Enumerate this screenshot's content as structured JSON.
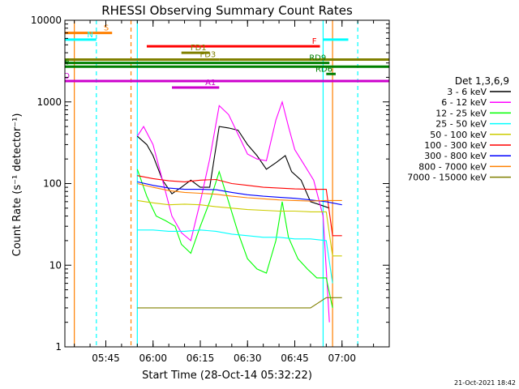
{
  "chart_data": {
    "type": "line",
    "title": "RHESSI Observing Summary Count Rates",
    "xlabel": "Start Time (28-Oct-14 05:32:22)",
    "ylabel": "Count Rate (s⁻¹ detector⁻¹)",
    "y_scale": "log",
    "ylim": [
      1,
      10000
    ],
    "xlim": [
      "05:32",
      "07:15"
    ],
    "x_ticks": [
      "05:45",
      "06:00",
      "06:15",
      "06:30",
      "06:45",
      "07:00"
    ],
    "y_ticks": [
      "1",
      "10",
      "100",
      "1000",
      "10000"
    ],
    "legend_title": "Det 1,3,6,9",
    "legend_position": "right",
    "series": [
      {
        "name": "3 - 6 keV",
        "color": "#000000",
        "points": [
          [
            "05:55",
            380
          ],
          [
            "05:58",
            300
          ],
          [
            "06:00",
            220
          ],
          [
            "06:03",
            110
          ],
          [
            "06:06",
            75
          ],
          [
            "06:09",
            90
          ],
          [
            "06:12",
            110
          ],
          [
            "06:15",
            90
          ],
          [
            "06:18",
            90
          ],
          [
            "06:21",
            500
          ],
          [
            "06:24",
            480
          ],
          [
            "06:27",
            450
          ],
          [
            "06:30",
            300
          ],
          [
            "06:33",
            220
          ],
          [
            "06:36",
            150
          ],
          [
            "06:39",
            180
          ],
          [
            "06:42",
            220
          ],
          [
            "06:44",
            140
          ],
          [
            "06:47",
            110
          ],
          [
            "06:50",
            60
          ],
          [
            "06:53",
            55
          ],
          [
            "06:56",
            50
          ]
        ]
      },
      {
        "name": "6 - 12 keV",
        "color": "#ff00ff",
        "points": [
          [
            "05:55",
            380
          ],
          [
            "05:57",
            500
          ],
          [
            "06:00",
            300
          ],
          [
            "06:03",
            110
          ],
          [
            "06:06",
            40
          ],
          [
            "06:09",
            25
          ],
          [
            "06:12",
            20
          ],
          [
            "06:15",
            60
          ],
          [
            "06:18",
            200
          ],
          [
            "06:21",
            900
          ],
          [
            "06:24",
            700
          ],
          [
            "06:27",
            400
          ],
          [
            "06:30",
            230
          ],
          [
            "06:33",
            200
          ],
          [
            "06:36",
            190
          ],
          [
            "06:39",
            600
          ],
          [
            "06:41",
            1000
          ],
          [
            "06:43",
            500
          ],
          [
            "06:45",
            260
          ],
          [
            "06:48",
            170
          ],
          [
            "06:51",
            110
          ],
          [
            "06:54",
            40
          ],
          [
            "06:56",
            2
          ]
        ]
      },
      {
        "name": "12 - 25 keV",
        "color": "#00ff00",
        "points": [
          [
            "05:55",
            150
          ],
          [
            "05:58",
            70
          ],
          [
            "06:01",
            40
          ],
          [
            "06:04",
            35
          ],
          [
            "06:07",
            30
          ],
          [
            "06:09",
            18
          ],
          [
            "06:12",
            14
          ],
          [
            "06:15",
            30
          ],
          [
            "06:18",
            60
          ],
          [
            "06:21",
            140
          ],
          [
            "06:24",
            60
          ],
          [
            "06:27",
            25
          ],
          [
            "06:30",
            12
          ],
          [
            "06:33",
            9
          ],
          [
            "06:36",
            8
          ],
          [
            "06:39",
            20
          ],
          [
            "06:41",
            60
          ],
          [
            "06:43",
            22
          ],
          [
            "06:46",
            12
          ],
          [
            "06:49",
            9
          ],
          [
            "06:52",
            7
          ],
          [
            "06:55",
            7
          ],
          [
            "06:57",
            3
          ]
        ]
      },
      {
        "name": "25 - 50 keV",
        "color": "#00ffff",
        "points": [
          [
            "05:55",
            27
          ],
          [
            "06:00",
            27
          ],
          [
            "06:05",
            26
          ],
          [
            "06:10",
            26
          ],
          [
            "06:15",
            27
          ],
          [
            "06:20",
            26
          ],
          [
            "06:25",
            24
          ],
          [
            "06:30",
            23
          ],
          [
            "06:35",
            22
          ],
          [
            "06:40",
            22
          ],
          [
            "06:45",
            21
          ],
          [
            "06:50",
            21
          ],
          [
            "06:55",
            20
          ],
          [
            "06:57",
            6
          ]
        ]
      },
      {
        "name": "50 - 100 keV",
        "color": "#cccc00",
        "points": [
          [
            "05:55",
            62
          ],
          [
            "06:00",
            58
          ],
          [
            "06:05",
            55
          ],
          [
            "06:10",
            56
          ],
          [
            "06:15",
            55
          ],
          [
            "06:20",
            52
          ],
          [
            "06:25",
            50
          ],
          [
            "06:30",
            48
          ],
          [
            "06:35",
            47
          ],
          [
            "06:40",
            46
          ],
          [
            "06:45",
            46
          ],
          [
            "06:50",
            45
          ],
          [
            "06:55",
            45
          ],
          [
            "06:57",
            13
          ],
          [
            "07:00",
            13
          ]
        ]
      },
      {
        "name": "100 - 300 keV",
        "color": "#ff0000",
        "points": [
          [
            "05:55",
            125
          ],
          [
            "06:00",
            115
          ],
          [
            "06:05",
            108
          ],
          [
            "06:10",
            105
          ],
          [
            "06:15",
            110
          ],
          [
            "06:20",
            112
          ],
          [
            "06:25",
            100
          ],
          [
            "06:30",
            95
          ],
          [
            "06:35",
            90
          ],
          [
            "06:40",
            88
          ],
          [
            "06:45",
            86
          ],
          [
            "06:50",
            85
          ],
          [
            "06:55",
            85
          ],
          [
            "06:57",
            23
          ],
          [
            "07:00",
            23
          ]
        ]
      },
      {
        "name": "300 - 800 keV",
        "color": "#0000ff",
        "points": [
          [
            "05:55",
            105
          ],
          [
            "06:00",
            95
          ],
          [
            "06:05",
            88
          ],
          [
            "06:10",
            85
          ],
          [
            "06:15",
            85
          ],
          [
            "06:20",
            84
          ],
          [
            "06:25",
            78
          ],
          [
            "06:30",
            73
          ],
          [
            "06:35",
            70
          ],
          [
            "06:40",
            68
          ],
          [
            "06:45",
            66
          ],
          [
            "06:50",
            63
          ],
          [
            "06:55",
            60
          ],
          [
            "07:00",
            55
          ]
        ]
      },
      {
        "name": "800 - 7000 keV",
        "color": "#ff8000",
        "points": [
          [
            "05:55",
            100
          ],
          [
            "06:00",
            90
          ],
          [
            "06:05",
            82
          ],
          [
            "06:10",
            78
          ],
          [
            "06:15",
            76
          ],
          [
            "06:20",
            74
          ],
          [
            "06:25",
            70
          ],
          [
            "06:30",
            67
          ],
          [
            "06:35",
            65
          ],
          [
            "06:40",
            63
          ],
          [
            "06:45",
            62
          ],
          [
            "06:50",
            61
          ],
          [
            "06:55",
            62
          ],
          [
            "07:00",
            62
          ]
        ]
      },
      {
        "name": "7000 - 15000 keV",
        "color": "#808000",
        "points": [
          [
            "05:55",
            3
          ],
          [
            "06:00",
            3
          ],
          [
            "06:05",
            3
          ],
          [
            "06:10",
            3
          ],
          [
            "06:15",
            3
          ],
          [
            "06:20",
            3
          ],
          [
            "06:25",
            3
          ],
          [
            "06:30",
            3
          ],
          [
            "06:35",
            3
          ],
          [
            "06:40",
            3
          ],
          [
            "06:45",
            3
          ],
          [
            "06:50",
            3
          ],
          [
            "06:55",
            4
          ],
          [
            "07:00",
            4
          ]
        ]
      }
    ],
    "flag_bars": [
      {
        "label": "S",
        "color": "#ff8000",
        "y": 7000,
        "segments": [
          [
            "05:32",
            "05:47"
          ]
        ]
      },
      {
        "label": "N",
        "color": "#00ffff",
        "y": 5800,
        "segments": [
          [
            "05:32",
            "05:42"
          ],
          [
            "06:54",
            "07:02"
          ]
        ]
      },
      {
        "label": "F",
        "color": "#ff0000",
        "y": 4800,
        "segments": [
          [
            "05:58",
            "06:53"
          ]
        ]
      },
      {
        "label": "FD1",
        "color": "#808000",
        "y": 4000,
        "segments": [
          [
            "06:09",
            "06:18"
          ]
        ]
      },
      {
        "label": "FD3",
        "color": "#808000",
        "y": 3300,
        "segments": [
          [
            "05:32",
            "06:21"
          ],
          [
            "06:21",
            "07:15"
          ]
        ]
      },
      {
        "label": "RD9",
        "color": "#008000",
        "y": 3000,
        "segments": [
          [
            "05:32",
            "06:56"
          ]
        ]
      },
      {
        "label": "RD6",
        "color": "#008000",
        "y": 2700,
        "segments": [
          [
            "05:32",
            "07:15"
          ]
        ]
      },
      {
        "label": "RD6",
        "color": "#008000",
        "y": 2200,
        "segments": [
          [
            "06:55",
            "06:58"
          ]
        ]
      },
      {
        "label": "AO",
        "color": "#cc00cc",
        "y": 1800,
        "segments": [
          [
            "05:32",
            "07:15"
          ]
        ]
      },
      {
        "label": "A1",
        "color": "#cc00cc",
        "y": 1500,
        "segments": [
          [
            "06:06",
            "06:21"
          ]
        ]
      }
    ],
    "vlines": [
      {
        "color": "#ff8000",
        "x": "05:35",
        "style": "solid"
      },
      {
        "color": "#00ffff",
        "x": "05:42",
        "style": "dashed"
      },
      {
        "color": "#ff8000",
        "x": "05:53",
        "style": "dashed"
      },
      {
        "color": "#00ffff",
        "x": "05:55",
        "style": "solid"
      },
      {
        "color": "#00ffff",
        "x": "06:54",
        "style": "solid"
      },
      {
        "color": "#ff8000",
        "x": "06:57",
        "style": "solid"
      },
      {
        "color": "#00ffff",
        "x": "07:05",
        "style": "dashed"
      }
    ]
  },
  "footer": {
    "timestamp": "21-Oct-2021 18:42"
  }
}
